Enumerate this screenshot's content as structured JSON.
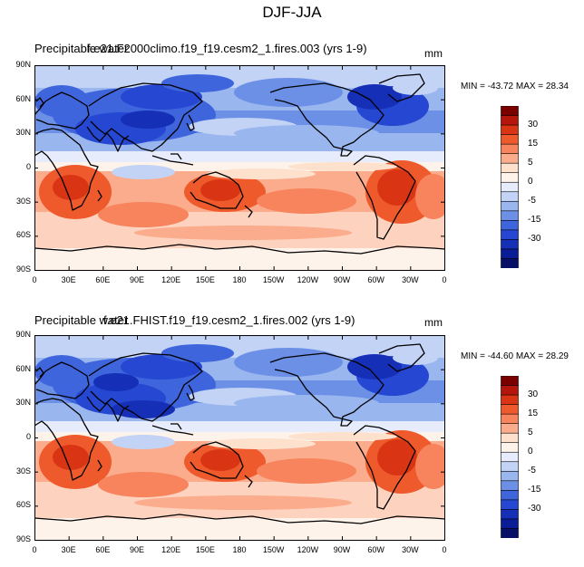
{
  "main_title": "DJF-JJA",
  "panels": [
    {
      "variable": "Precipitable water",
      "case": "f.e21.F2000climo.f19_f19.cesm2_1.fires.003 (yrs 1-9)",
      "units": "mm",
      "stats": "MIN = -43.72  MAX =  28.34"
    },
    {
      "variable": "Precipitable water",
      "case": "f.e21.FHIST.f19_f19.cesm2_1.fires.002 (yrs 1-9)",
      "units": "mm",
      "stats": "MIN = -44.60  MAX =  28.29"
    }
  ],
  "lat_labels": [
    "90N",
    "60N",
    "30N",
    "0",
    "30S",
    "60S",
    "90S"
  ],
  "lon_labels": [
    "0",
    "30E",
    "60E",
    "90E",
    "120E",
    "150E",
    "180",
    "150W",
    "120W",
    "90W",
    "60W",
    "30W",
    "0"
  ],
  "colorbar": {
    "labels": [
      "30",
      "15",
      "5",
      "0",
      "-5",
      "-15",
      "-30"
    ],
    "colors": [
      "#7a0000",
      "#b4160c",
      "#d93514",
      "#ef5a2c",
      "#f7845c",
      "#fbac8c",
      "#fde1cc",
      "#fdf3ea",
      "#e6ecfb",
      "#c3d3f6",
      "#9ab6ef",
      "#6b90e6",
      "#3f65dd",
      "#2547d2",
      "#1530b6",
      "#0b1d96",
      "#070f66"
    ]
  }
}
